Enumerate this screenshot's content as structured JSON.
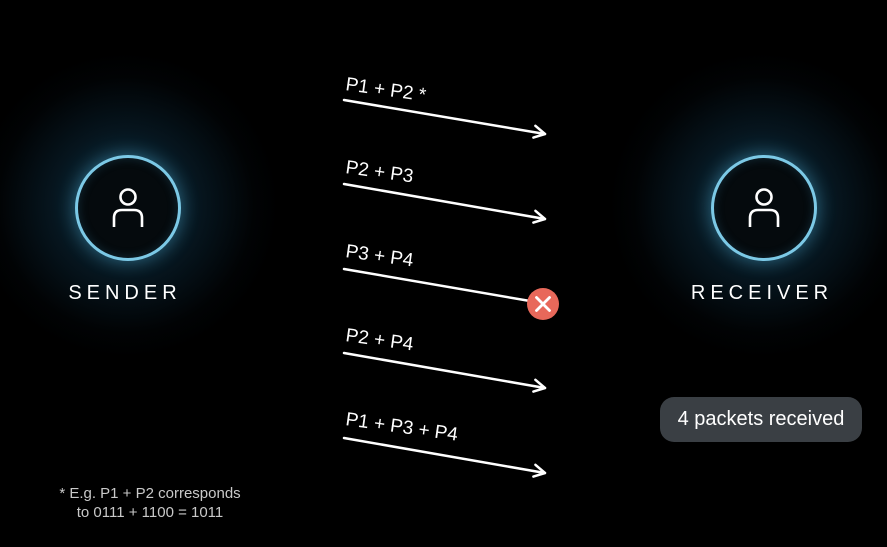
{
  "sender": {
    "label": "SENDER",
    "icon": "user-icon"
  },
  "receiver": {
    "label": "RECEIVER",
    "icon": "user-icon"
  },
  "packets": [
    {
      "label": "P1 + P2 *",
      "status": "delivered"
    },
    {
      "label": "P2 + P3",
      "status": "delivered"
    },
    {
      "label": "P3 + P4",
      "status": "lost"
    },
    {
      "label": "P2 + P4",
      "status": "delivered"
    },
    {
      "label": "P1 + P3 + P4",
      "status": "delivered"
    }
  ],
  "status_badge": "4 packets received",
  "footnote": {
    "line1": "* E.g. P1 + P2 corresponds",
    "line2": "to 0111 + 1100 = 1011"
  },
  "colors": {
    "node_ring": "#7cc9e6",
    "lost_marker": "#e8685a",
    "badge_bg": "#3a3f44"
  }
}
